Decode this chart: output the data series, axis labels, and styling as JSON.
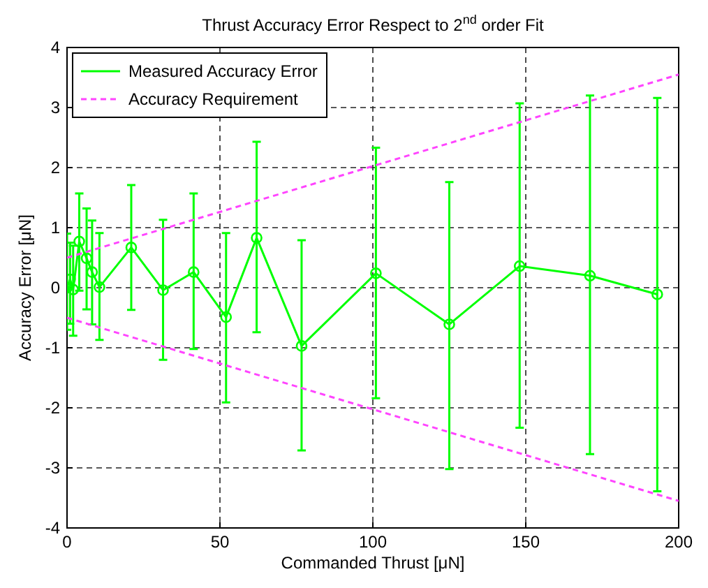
{
  "chart_data": {
    "type": "line",
    "title": "Thrust Accuracy Error Respect to 2$^{nd}$ order Fit",
    "xlabel": "Commanded Thrust [μN]",
    "ylabel": "Accuracy Error [μN]",
    "xlim": [
      0,
      200
    ],
    "xticks": [
      0,
      50,
      100,
      150,
      200
    ],
    "ylim": [
      -4,
      4
    ],
    "yticks": [
      -4,
      -3,
      -2,
      -1,
      0,
      1,
      2,
      3,
      4
    ],
    "grid": true,
    "legend": "top left",
    "series": [
      {
        "name": "Measured Accuracy Error",
        "color": "#00ff00",
        "marker": "circle",
        "line_style": "solid",
        "x": [
          0,
          1,
          2,
          4,
          6.4,
          8.2,
          10.6,
          21,
          31.4,
          41.4,
          52,
          62,
          76.7,
          101,
          125,
          148,
          171,
          193
        ],
        "values": [
          0,
          0.14,
          -0.03,
          0.77,
          0.49,
          0.26,
          0.01,
          0.67,
          -0.04,
          0.26,
          -0.49,
          0.83,
          -0.97,
          0.24,
          -0.61,
          0.36,
          0.2,
          -0.11
        ],
        "errors": [
          [
            -0.7,
            0.9
          ],
          [
            -0.6,
            0.75
          ],
          [
            -0.8,
            0.7
          ],
          [
            -0.05,
            1.57
          ],
          [
            -0.36,
            1.32
          ],
          [
            -0.61,
            1.12
          ],
          [
            -0.87,
            0.91
          ],
          [
            -0.37,
            1.71
          ],
          [
            -1.2,
            1.13
          ],
          [
            -1.02,
            1.57
          ],
          [
            -1.91,
            0.91
          ],
          [
            -0.74,
            2.43
          ],
          [
            -2.71,
            0.79
          ],
          [
            -1.84,
            2.33
          ],
          [
            -3.02,
            1.76
          ],
          [
            -2.33,
            3.07
          ],
          [
            -2.77,
            3.2
          ],
          [
            -3.39,
            3.16
          ]
        ]
      },
      {
        "name": "Accuracy Requirement",
        "color": "#ff44ff",
        "marker": "none",
        "line_style": "dashed",
        "x": [
          0,
          200
        ],
        "values": [
          0.5,
          3.55
        ]
      },
      {
        "color": "#ff44ff",
        "marker": "none",
        "line_style": "dashed",
        "x": [
          0,
          200
        ],
        "values": [
          -0.5,
          -3.55
        ]
      }
    ]
  }
}
